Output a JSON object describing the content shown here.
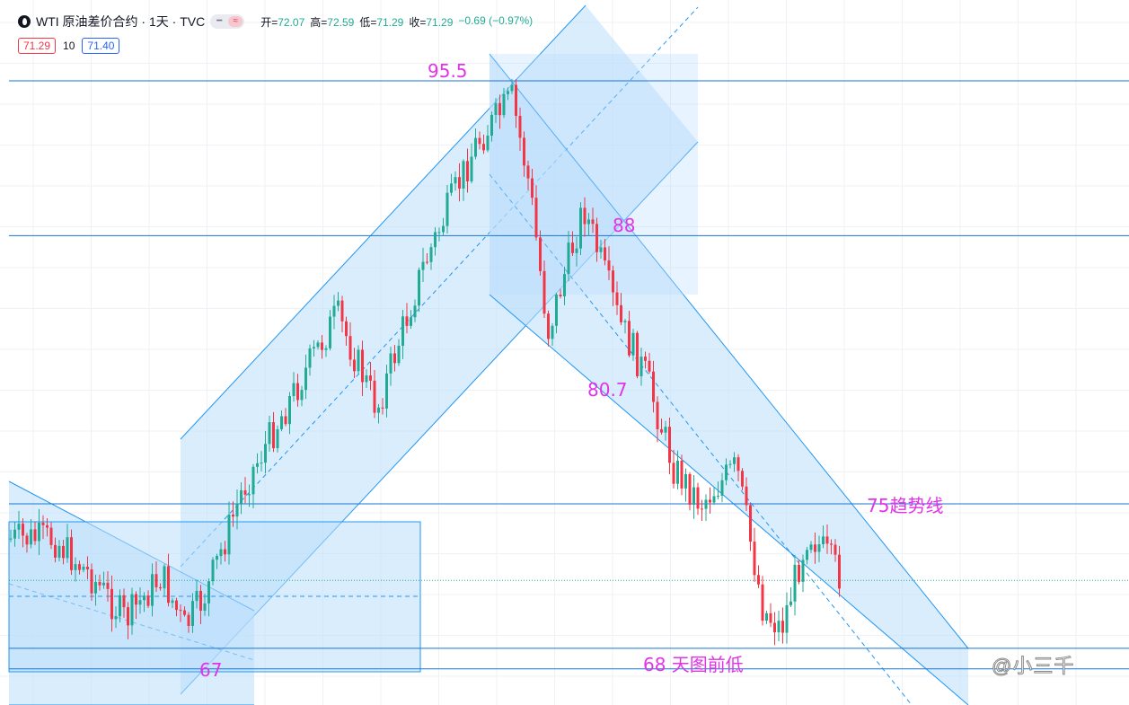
{
  "header": {
    "symbol_title": "WTI 原油差价合约 · 1天 · TVC",
    "logo_icon": "oil-drop-icon",
    "toggle_icons": [
      "minus-icon",
      "approx-icon"
    ],
    "ohlc": {
      "open_label": "开=",
      "open": "72.07",
      "high_label": "高=",
      "high": "72.59",
      "low_label": "低=",
      "low": "71.29",
      "close_label": "收=",
      "close": "71.29",
      "change": "−0.69 (−0.97%)"
    },
    "sell_price": "71.29",
    "quantity": "10",
    "buy_price": "71.40"
  },
  "watermark": "@小三千",
  "colors": {
    "up": "#22ab94",
    "down": "#f23645",
    "annotation": "#e233e6",
    "channel_line": "#2196f3",
    "channel_fill": "#bbdefb"
  },
  "chart_data": {
    "type": "candlestick",
    "title": "WTI 原油差价合约 · 1天 · TVC",
    "horizontal_levels": [
      95.5,
      88,
      75,
      68,
      67
    ],
    "annotations": [
      {
        "text": "95.5",
        "price": 95.5
      },
      {
        "text": "88",
        "price": 88
      },
      {
        "text": "80.7",
        "price": 80.7
      },
      {
        "text": "75趋势线",
        "price": 75
      },
      {
        "text": "68 天图前低",
        "price": 68
      },
      {
        "text": "67",
        "price": 67
      }
    ],
    "last_price": 71.29,
    "grid": true
  }
}
